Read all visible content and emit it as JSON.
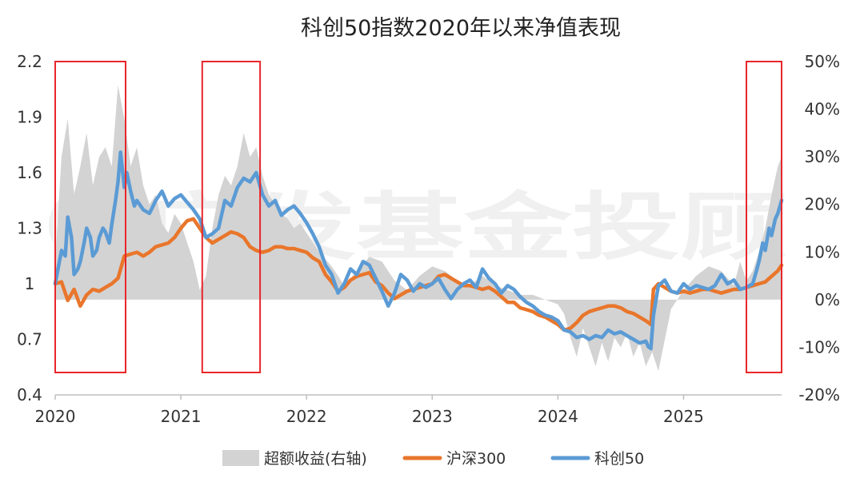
{
  "chart_data": {
    "type": "line",
    "title": "科创50指数2020年以来净值表现",
    "x_ticks": [
      "2020",
      "2021",
      "2022",
      "2023",
      "2024",
      "2025"
    ],
    "x_range": [
      2020.0,
      2025.78
    ],
    "y_left_ticks": [
      "0.4",
      "0.7",
      "1",
      "1.3",
      "1.6",
      "1.9",
      "2.2"
    ],
    "y_left_range": [
      0.4,
      2.2
    ],
    "y_right_ticks": [
      "-20%",
      "-10%",
      "0%",
      "10%",
      "20%",
      "30%",
      "40%",
      "50%"
    ],
    "y_right_range": [
      -20,
      50
    ],
    "grid": false,
    "legend_position": "bottom",
    "watermark": "广发基金投顾",
    "highlight_ranges": [
      [
        2020.0,
        2020.56
      ],
      [
        2021.17,
        2021.63
      ],
      [
        2025.5,
        2025.78
      ]
    ],
    "series": [
      {
        "name": "超额收益(右轴)",
        "type": "area",
        "axis": "right",
        "color": "#d3d3d3",
        "x": [
          2020.0,
          2020.05,
          2020.1,
          2020.15,
          2020.2,
          2020.25,
          2020.3,
          2020.35,
          2020.4,
          2020.45,
          2020.5,
          2020.55,
          2020.6,
          2020.65,
          2020.7,
          2020.75,
          2020.8,
          2020.85,
          2020.9,
          2020.95,
          2021.0,
          2021.05,
          2021.1,
          2021.15,
          2021.2,
          2021.25,
          2021.3,
          2021.35,
          2021.4,
          2021.45,
          2021.5,
          2021.55,
          2021.6,
          2021.65,
          2021.7,
          2021.75,
          2021.8,
          2021.85,
          2021.9,
          2021.95,
          2022.0,
          2022.1,
          2022.2,
          2022.3,
          2022.4,
          2022.5,
          2022.6,
          2022.7,
          2022.8,
          2022.9,
          2023.0,
          2023.1,
          2023.2,
          2023.3,
          2023.4,
          2023.5,
          2023.6,
          2023.7,
          2023.8,
          2023.9,
          2024.0,
          2024.05,
          2024.1,
          2024.15,
          2024.2,
          2024.25,
          2024.3,
          2024.35,
          2024.4,
          2024.45,
          2024.5,
          2024.55,
          2024.6,
          2024.65,
          2024.7,
          2024.75,
          2024.8,
          2024.9,
          2025.0,
          2025.1,
          2025.2,
          2025.3,
          2025.4,
          2025.45,
          2025.5,
          2025.55,
          2025.6,
          2025.65,
          2025.7,
          2025.75,
          2025.78
        ],
        "values": [
          8,
          30,
          38,
          22,
          28,
          35,
          24,
          30,
          32,
          28,
          45,
          38,
          28,
          32,
          24,
          20,
          22,
          16,
          14,
          18,
          16,
          12,
          8,
          2,
          5,
          15,
          22,
          26,
          24,
          28,
          35,
          30,
          32,
          26,
          22,
          20,
          18,
          17,
          15,
          16,
          14,
          10,
          7,
          3,
          6,
          9,
          8,
          4,
          2,
          5,
          7,
          6,
          4,
          3,
          5,
          3,
          2,
          1,
          1,
          0,
          -1,
          -3,
          -8,
          -12,
          -6,
          -10,
          -14,
          -9,
          -13,
          -8,
          -10,
          -7,
          -12,
          -9,
          -14,
          -11,
          -15,
          -2,
          2,
          5,
          7,
          6,
          3,
          8,
          4,
          6,
          10,
          15,
          22,
          28,
          30
        ]
      },
      {
        "name": "沪深300",
        "type": "line",
        "axis": "left",
        "color": "#e9762b",
        "x": [
          2020.0,
          2020.05,
          2020.1,
          2020.15,
          2020.2,
          2020.25,
          2020.3,
          2020.35,
          2020.4,
          2020.45,
          2020.5,
          2020.55,
          2020.6,
          2020.65,
          2020.7,
          2020.75,
          2020.8,
          2020.85,
          2020.9,
          2020.95,
          2021.0,
          2021.05,
          2021.1,
          2021.15,
          2021.2,
          2021.25,
          2021.3,
          2021.35,
          2021.4,
          2021.45,
          2021.5,
          2021.55,
          2021.6,
          2021.65,
          2021.7,
          2021.75,
          2021.8,
          2021.85,
          2021.9,
          2021.95,
          2022.0,
          2022.05,
          2022.1,
          2022.15,
          2022.2,
          2022.25,
          2022.3,
          2022.35,
          2022.4,
          2022.45,
          2022.5,
          2022.55,
          2022.6,
          2022.65,
          2022.7,
          2022.75,
          2022.8,
          2022.85,
          2022.9,
          2022.95,
          2023.0,
          2023.05,
          2023.1,
          2023.15,
          2023.2,
          2023.25,
          2023.3,
          2023.35,
          2023.4,
          2023.45,
          2023.5,
          2023.55,
          2023.6,
          2023.65,
          2023.7,
          2023.75,
          2023.8,
          2023.85,
          2023.9,
          2023.95,
          2024.0,
          2024.05,
          2024.1,
          2024.15,
          2024.2,
          2024.25,
          2024.3,
          2024.35,
          2024.4,
          2024.45,
          2024.5,
          2024.55,
          2024.6,
          2024.65,
          2024.7,
          2024.72,
          2024.74,
          2024.76,
          2024.8,
          2024.85,
          2024.9,
          2024.95,
          2025.0,
          2025.05,
          2025.1,
          2025.15,
          2025.2,
          2025.25,
          2025.3,
          2025.35,
          2025.4,
          2025.45,
          2025.5,
          2025.55,
          2025.6,
          2025.65,
          2025.7,
          2025.75,
          2025.78
        ],
        "values": [
          1.0,
          1.01,
          0.91,
          0.97,
          0.88,
          0.94,
          0.97,
          0.96,
          0.98,
          1.0,
          1.03,
          1.15,
          1.16,
          1.17,
          1.15,
          1.17,
          1.2,
          1.21,
          1.22,
          1.25,
          1.3,
          1.34,
          1.35,
          1.3,
          1.25,
          1.22,
          1.24,
          1.26,
          1.28,
          1.27,
          1.25,
          1.2,
          1.18,
          1.17,
          1.18,
          1.2,
          1.2,
          1.19,
          1.19,
          1.18,
          1.17,
          1.14,
          1.12,
          1.05,
          1.01,
          0.96,
          0.98,
          1.02,
          1.04,
          1.05,
          1.06,
          1.01,
          0.99,
          0.95,
          0.92,
          0.94,
          0.96,
          0.97,
          0.98,
          0.99,
          1.0,
          1.04,
          1.05,
          1.03,
          1.01,
          0.99,
          0.99,
          0.98,
          0.97,
          0.98,
          0.96,
          0.93,
          0.9,
          0.9,
          0.87,
          0.86,
          0.85,
          0.83,
          0.82,
          0.8,
          0.78,
          0.75,
          0.76,
          0.79,
          0.83,
          0.85,
          0.86,
          0.87,
          0.88,
          0.88,
          0.87,
          0.85,
          0.84,
          0.82,
          0.8,
          0.79,
          0.78,
          0.97,
          1.0,
          0.98,
          0.96,
          0.95,
          0.96,
          0.95,
          0.96,
          0.97,
          0.97,
          0.96,
          0.95,
          0.96,
          0.97,
          0.97,
          0.98,
          0.99,
          1.0,
          1.01,
          1.04,
          1.07,
          1.1
        ]
      },
      {
        "name": "科创50",
        "type": "line",
        "axis": "left",
        "color": "#5b9bd5",
        "x": [
          2020.0,
          2020.05,
          2020.08,
          2020.1,
          2020.13,
          2020.15,
          2020.18,
          2020.2,
          2020.23,
          2020.25,
          2020.28,
          2020.3,
          2020.33,
          2020.35,
          2020.38,
          2020.4,
          2020.43,
          2020.45,
          2020.48,
          2020.5,
          2020.52,
          2020.55,
          2020.57,
          2020.6,
          2020.63,
          2020.65,
          2020.7,
          2020.75,
          2020.8,
          2020.85,
          2020.9,
          2020.95,
          2021.0,
          2021.05,
          2021.1,
          2021.15,
          2021.2,
          2021.25,
          2021.3,
          2021.35,
          2021.4,
          2021.45,
          2021.5,
          2021.55,
          2021.6,
          2021.65,
          2021.7,
          2021.75,
          2021.8,
          2021.85,
          2021.9,
          2021.95,
          2022.0,
          2022.05,
          2022.1,
          2022.15,
          2022.2,
          2022.25,
          2022.3,
          2022.35,
          2022.4,
          2022.45,
          2022.5,
          2022.55,
          2022.6,
          2022.65,
          2022.7,
          2022.75,
          2022.8,
          2022.85,
          2022.9,
          2022.95,
          2023.0,
          2023.05,
          2023.1,
          2023.15,
          2023.2,
          2023.25,
          2023.3,
          2023.35,
          2023.4,
          2023.45,
          2023.5,
          2023.55,
          2023.6,
          2023.65,
          2023.7,
          2023.75,
          2023.8,
          2023.85,
          2023.9,
          2023.95,
          2024.0,
          2024.05,
          2024.1,
          2024.15,
          2024.2,
          2024.25,
          2024.3,
          2024.35,
          2024.4,
          2024.45,
          2024.5,
          2024.55,
          2024.6,
          2024.65,
          2024.7,
          2024.72,
          2024.74,
          2024.76,
          2024.8,
          2024.85,
          2024.9,
          2024.95,
          2025.0,
          2025.05,
          2025.1,
          2025.15,
          2025.2,
          2025.25,
          2025.3,
          2025.35,
          2025.4,
          2025.45,
          2025.5,
          2025.55,
          2025.58,
          2025.6,
          2025.63,
          2025.65,
          2025.68,
          2025.7,
          2025.73,
          2025.75,
          2025.78
        ],
        "values": [
          1.0,
          1.18,
          1.15,
          1.36,
          1.25,
          1.05,
          1.08,
          1.12,
          1.22,
          1.3,
          1.25,
          1.15,
          1.18,
          1.25,
          1.3,
          1.28,
          1.22,
          1.32,
          1.45,
          1.55,
          1.71,
          1.52,
          1.6,
          1.5,
          1.42,
          1.45,
          1.4,
          1.38,
          1.45,
          1.5,
          1.42,
          1.46,
          1.48,
          1.44,
          1.4,
          1.35,
          1.25,
          1.27,
          1.3,
          1.45,
          1.42,
          1.52,
          1.57,
          1.55,
          1.6,
          1.48,
          1.42,
          1.45,
          1.37,
          1.4,
          1.42,
          1.38,
          1.33,
          1.27,
          1.2,
          1.1,
          1.05,
          0.95,
          1.0,
          1.08,
          1.05,
          1.12,
          1.1,
          1.03,
          0.96,
          0.88,
          0.95,
          1.05,
          1.02,
          0.96,
          1.0,
          0.98,
          1.0,
          1.03,
          0.97,
          0.92,
          0.97,
          1.0,
          1.02,
          0.98,
          1.08,
          1.03,
          1.0,
          0.95,
          0.99,
          0.97,
          0.93,
          0.9,
          0.88,
          0.85,
          0.83,
          0.82,
          0.8,
          0.75,
          0.74,
          0.71,
          0.72,
          0.7,
          0.72,
          0.71,
          0.75,
          0.73,
          0.74,
          0.72,
          0.7,
          0.68,
          0.69,
          0.66,
          0.65,
          0.83,
          0.99,
          1.02,
          0.96,
          0.95,
          1.0,
          0.97,
          0.99,
          0.98,
          0.97,
          0.99,
          1.05,
          1.0,
          1.02,
          0.97,
          0.98,
          1.0,
          1.07,
          1.12,
          1.22,
          1.18,
          1.3,
          1.26,
          1.35,
          1.38,
          1.45
        ]
      }
    ]
  }
}
